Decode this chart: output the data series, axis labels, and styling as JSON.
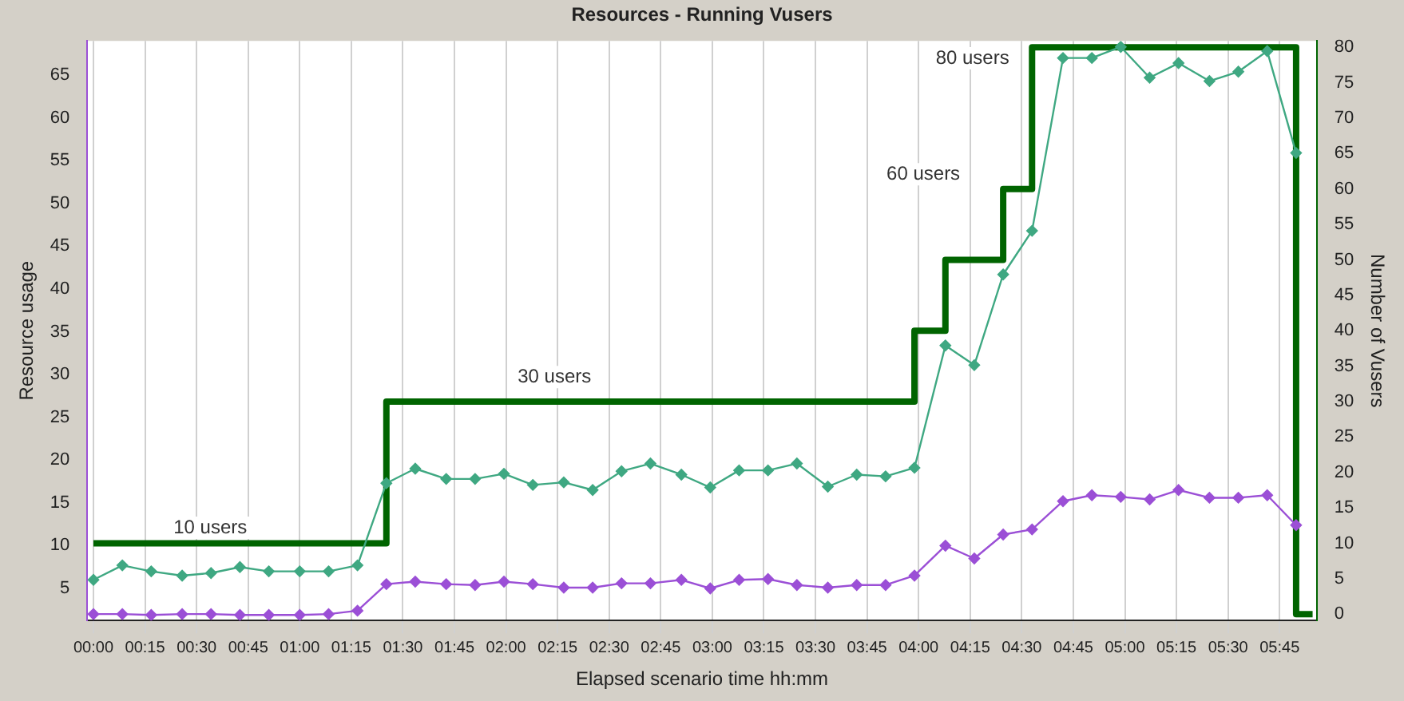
{
  "chart_data": {
    "type": "line",
    "title": "Resources - Running Vusers",
    "xlabel": "Elapsed scenario time hh:mm",
    "ylabel": "Resource usage",
    "y2label": "Number of Vusers",
    "xlim": [
      -0.03,
      5.93
    ],
    "xticks": [
      {
        "value": 0,
        "label": "00:00"
      },
      {
        "value": 0.25,
        "label": "00:15"
      },
      {
        "value": 0.5,
        "label": "00:30"
      },
      {
        "value": 0.75,
        "label": "00:45"
      },
      {
        "value": 1,
        "label": "01:00"
      },
      {
        "value": 1.25,
        "label": "01:15"
      },
      {
        "value": 1.5,
        "label": "01:30"
      },
      {
        "value": 1.75,
        "label": "01:45"
      },
      {
        "value": 2,
        "label": "02:00"
      },
      {
        "value": 2.25,
        "label": "02:15"
      },
      {
        "value": 2.5,
        "label": "02:30"
      },
      {
        "value": 2.75,
        "label": "02:45"
      },
      {
        "value": 3,
        "label": "03:00"
      },
      {
        "value": 3.25,
        "label": "03:15"
      },
      {
        "value": 3.5,
        "label": "03:30"
      },
      {
        "value": 3.75,
        "label": "03:45"
      },
      {
        "value": 4,
        "label": "04:00"
      },
      {
        "value": 4.25,
        "label": "04:15"
      },
      {
        "value": 4.5,
        "label": "04:30"
      },
      {
        "value": 4.75,
        "label": "04:45"
      },
      {
        "value": 5,
        "label": "05:00"
      },
      {
        "value": 5.25,
        "label": "05:15"
      },
      {
        "value": 5.5,
        "label": "05:30"
      },
      {
        "value": 5.75,
        "label": "05:45"
      }
    ],
    "ylim": [
      1.25,
      69
    ],
    "yticks": [
      5,
      10,
      15,
      20,
      25,
      30,
      35,
      40,
      45,
      50,
      55,
      60,
      65
    ],
    "y2lim": [
      -0.9,
      80.9
    ],
    "y2ticks": [
      0,
      5,
      10,
      15,
      20,
      25,
      30,
      35,
      40,
      45,
      50,
      55,
      60,
      65,
      70,
      75,
      80
    ],
    "grid": "x",
    "legend": false,
    "marker": "diamond",
    "x": [
      0,
      0.14,
      0.28,
      0.43,
      0.57,
      0.71,
      0.85,
      1.0,
      1.14,
      1.28,
      1.42,
      1.56,
      1.71,
      1.85,
      1.99,
      2.13,
      2.28,
      2.42,
      2.56,
      2.7,
      2.85,
      2.99,
      3.13,
      3.27,
      3.41,
      3.56,
      3.7,
      3.84,
      3.98,
      4.13,
      4.27,
      4.41,
      4.55,
      4.7,
      4.84,
      4.98,
      5.12,
      5.26,
      5.41,
      5.55,
      5.69,
      5.83
    ],
    "series": [
      {
        "color": "#3fa882",
        "values": [
          6.0,
          7.7,
          7.0,
          6.5,
          6.8,
          7.5,
          7.0,
          7.0,
          7.0,
          7.7,
          17.3,
          19.0,
          17.8,
          17.8,
          18.4,
          17.1,
          17.4,
          16.5,
          18.7,
          19.6,
          18.3,
          16.8,
          18.8,
          18.8,
          19.6,
          16.9,
          18.3,
          18.1,
          19.1,
          33.4,
          31.1,
          41.7,
          46.8,
          67.0,
          67.0,
          68.3,
          64.7,
          66.4,
          64.3,
          65.4,
          67.8,
          55.9
        ]
      },
      {
        "color": "#9b4fd6",
        "values": [
          2.0,
          2.0,
          1.9,
          2.0,
          2.0,
          1.9,
          1.9,
          1.9,
          2.0,
          2.4,
          5.5,
          5.8,
          5.5,
          5.4,
          5.8,
          5.5,
          5.1,
          5.1,
          5.6,
          5.6,
          6.0,
          5.0,
          6.0,
          6.1,
          5.4,
          5.1,
          5.4,
          5.4,
          6.5,
          10.0,
          8.5,
          11.3,
          11.9,
          15.2,
          15.9,
          15.7,
          15.4,
          16.5,
          15.6,
          15.6,
          15.9,
          12.4
        ]
      },
      {
        "type": "step",
        "axis": "y2",
        "color": "#006400",
        "marker": "none",
        "x": [
          0,
          1.42,
          3.98,
          4.13,
          4.41,
          4.55,
          5.83,
          5.91
        ],
        "values": [
          10,
          30,
          40,
          50,
          60,
          80,
          0,
          0
        ]
      }
    ],
    "annotations": [
      "10 users",
      "30 users",
      "60 users",
      "80 users"
    ]
  }
}
